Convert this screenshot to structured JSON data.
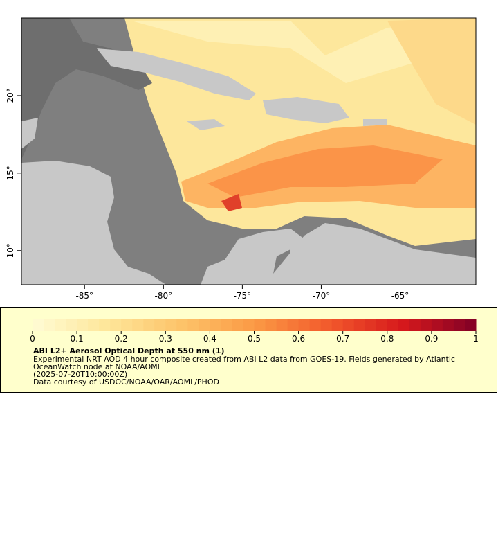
{
  "map": {
    "xlim": [
      -89,
      -60.2
    ],
    "ylim": [
      7.8,
      25
    ],
    "xticks": [
      {
        "value": -85,
        "label": "-85°"
      },
      {
        "value": -80,
        "label": "-80°"
      },
      {
        "value": -75,
        "label": "-75°"
      },
      {
        "value": -70,
        "label": "-70°"
      },
      {
        "value": -65,
        "label": "-65°"
      }
    ],
    "yticks": [
      {
        "value": 10,
        "label": "10°"
      },
      {
        "value": 15,
        "label": "15°"
      },
      {
        "value": 20,
        "label": "20°"
      }
    ]
  },
  "legend": {
    "colorbar_lim": [
      0,
      1
    ],
    "colorbar_ticks": [
      0,
      0.1,
      0.2,
      0.3,
      0.4,
      0.5,
      0.6,
      0.7,
      0.8,
      0.9,
      1
    ],
    "colormap": [
      "#fffcd4",
      "#fee69a",
      "#fdc46a",
      "#fb9a45",
      "#f25a2c",
      "#d7191c",
      "#800026"
    ],
    "title": "ABI L2+ Aerosol Optical Depth at 550 nm (1)",
    "lines": [
      "Experimental NRT AOD 4 hour composite created from ABI L2 data from GOES-19. Fields generated by Atlantic",
      "OceanWatch node at NOAA/AOML",
      "(2025-07-20T10:00:00Z)",
      "Data courtesy of USDOC/NOAA/OAR/AOML/PHOD"
    ]
  }
}
